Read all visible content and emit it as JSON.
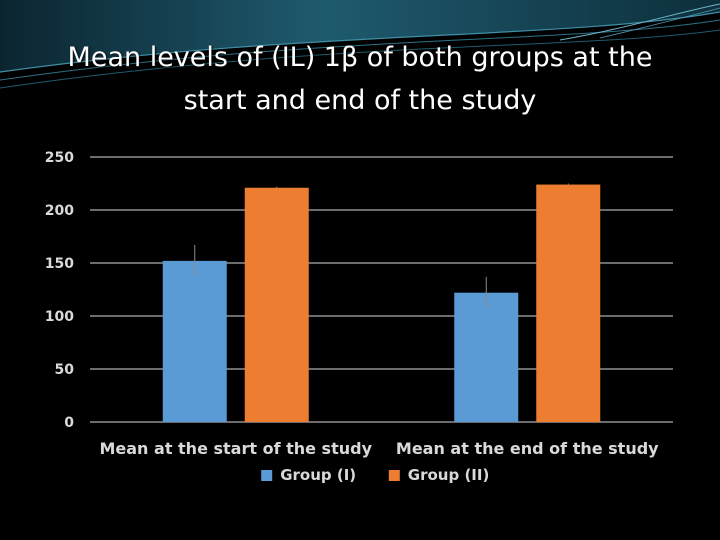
{
  "slide": {
    "title_line1": "Mean levels of (IL) 1β of both groups at the",
    "title_line2": "start and end of the study"
  },
  "colors": {
    "background": "#000000",
    "banner_teal": "#1f5a6e",
    "text": "#ffffff",
    "axis_text": "#d9d9d9",
    "grid": "#d9d9d9",
    "group_1": "#5b9bd5",
    "group_2": "#ed7d31"
  },
  "chart_data": {
    "type": "bar",
    "title": "",
    "xlabel": "",
    "ylabel": "",
    "categories": [
      "Mean at the start of the study",
      "Mean at the end of the study"
    ],
    "series": [
      {
        "name": "Group (I)",
        "values": [
          152,
          122
        ],
        "error": [
          15,
          15
        ],
        "color": "#5b9bd5"
      },
      {
        "name": "Group (II)",
        "values": [
          221,
          224
        ],
        "error": [
          1,
          1
        ],
        "color": "#ed7d31"
      }
    ],
    "ylim": [
      0,
      250
    ],
    "yticks": [
      0,
      50,
      100,
      150,
      200,
      250
    ],
    "ytick_labels": [
      "0",
      "50",
      "100",
      "150",
      "200",
      "250"
    ],
    "grid": true,
    "legend": "bottom"
  }
}
